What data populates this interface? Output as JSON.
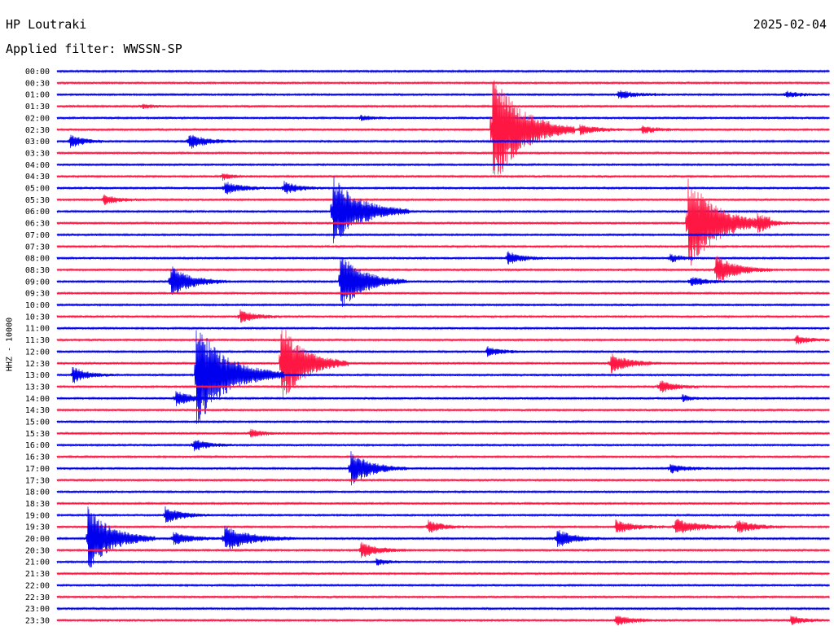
{
  "header": {
    "station": "HP Loutraki",
    "date": "2025-02-04",
    "filter_label": "Applied filter: WWSSN-SP"
  },
  "colors": {
    "even_trace": "#0000ee",
    "odd_trace": "#ff1744"
  },
  "chart_data": {
    "type": "helicorder",
    "ylabel": "HHZ - 10000",
    "row_labels": [
      "00:00",
      "00:30",
      "01:00",
      "01:30",
      "02:00",
      "02:30",
      "03:00",
      "03:30",
      "04:00",
      "04:30",
      "05:00",
      "05:30",
      "06:00",
      "06:30",
      "07:00",
      "07:30",
      "08:00",
      "08:30",
      "09:00",
      "09:30",
      "10:00",
      "10:30",
      "11:00",
      "11:30",
      "12:00",
      "12:30",
      "13:00",
      "13:30",
      "14:00",
      "14:30",
      "15:00",
      "15:30",
      "16:00",
      "16:30",
      "17:00",
      "17:30",
      "18:00",
      "18:30",
      "19:00",
      "19:30",
      "20:00",
      "20:30",
      "21:00",
      "21:30",
      "22:00",
      "22:30",
      "23:00",
      "23:30"
    ],
    "minutes_per_row": 30,
    "events": [
      {
        "row": 2,
        "minute": 21.8,
        "amp": 5,
        "dur": 2.0
      },
      {
        "row": 2,
        "minute": 28.3,
        "amp": 4,
        "dur": 1.6
      },
      {
        "row": 3,
        "minute": 3.3,
        "amp": 3,
        "dur": 1.0
      },
      {
        "row": 4,
        "minute": 11.8,
        "amp": 3,
        "dur": 1.2
      },
      {
        "row": 5,
        "minute": 16.9,
        "amp": 75,
        "dur": 3.2
      },
      {
        "row": 5,
        "minute": 20.3,
        "amp": 6,
        "dur": 2.0
      },
      {
        "row": 5,
        "minute": 22.7,
        "amp": 5,
        "dur": 1.6
      },
      {
        "row": 6,
        "minute": 0.5,
        "amp": 8,
        "dur": 1.5
      },
      {
        "row": 6,
        "minute": 5.1,
        "amp": 10,
        "dur": 1.8
      },
      {
        "row": 9,
        "minute": 6.4,
        "amp": 4,
        "dur": 1.2
      },
      {
        "row": 10,
        "minute": 6.5,
        "amp": 8,
        "dur": 1.8
      },
      {
        "row": 10,
        "minute": 8.8,
        "amp": 8,
        "dur": 1.6
      },
      {
        "row": 11,
        "minute": 1.8,
        "amp": 6,
        "dur": 1.6
      },
      {
        "row": 12,
        "minute": 10.7,
        "amp": 45,
        "dur": 3.0
      },
      {
        "row": 13,
        "minute": 24.5,
        "amp": 60,
        "dur": 3.2
      },
      {
        "row": 13,
        "minute": 27.2,
        "amp": 8,
        "dur": 1.6
      },
      {
        "row": 16,
        "minute": 17.5,
        "amp": 8,
        "dur": 1.6
      },
      {
        "row": 16,
        "minute": 23.8,
        "amp": 5,
        "dur": 1.4
      },
      {
        "row": 17,
        "minute": 25.6,
        "amp": 18,
        "dur": 2.2
      },
      {
        "row": 18,
        "minute": 4.4,
        "amp": 20,
        "dur": 2.2
      },
      {
        "row": 18,
        "minute": 11.0,
        "amp": 36,
        "dur": 2.6
      },
      {
        "row": 18,
        "minute": 24.6,
        "amp": 6,
        "dur": 1.6
      },
      {
        "row": 21,
        "minute": 7.1,
        "amp": 8,
        "dur": 1.6
      },
      {
        "row": 23,
        "minute": 28.7,
        "amp": 5,
        "dur": 1.6
      },
      {
        "row": 24,
        "minute": 16.7,
        "amp": 6,
        "dur": 1.6
      },
      {
        "row": 25,
        "minute": 8.7,
        "amp": 50,
        "dur": 2.6
      },
      {
        "row": 25,
        "minute": 21.5,
        "amp": 12,
        "dur": 2.0
      },
      {
        "row": 26,
        "minute": 0.6,
        "amp": 10,
        "dur": 1.6
      },
      {
        "row": 26,
        "minute": 5.4,
        "amp": 65,
        "dur": 3.4
      },
      {
        "row": 27,
        "minute": 23.4,
        "amp": 8,
        "dur": 1.6
      },
      {
        "row": 28,
        "minute": 4.6,
        "amp": 10,
        "dur": 1.6
      },
      {
        "row": 28,
        "minute": 24.3,
        "amp": 4,
        "dur": 1.0
      },
      {
        "row": 31,
        "minute": 7.5,
        "amp": 5,
        "dur": 1.4
      },
      {
        "row": 32,
        "minute": 5.3,
        "amp": 7,
        "dur": 1.6
      },
      {
        "row": 34,
        "minute": 11.4,
        "amp": 22,
        "dur": 2.2
      },
      {
        "row": 34,
        "minute": 23.8,
        "amp": 6,
        "dur": 1.6
      },
      {
        "row": 38,
        "minute": 4.2,
        "amp": 10,
        "dur": 1.8
      },
      {
        "row": 39,
        "minute": 14.4,
        "amp": 8,
        "dur": 1.6
      },
      {
        "row": 39,
        "minute": 21.7,
        "amp": 8,
        "dur": 2.0
      },
      {
        "row": 39,
        "minute": 24.0,
        "amp": 10,
        "dur": 2.4
      },
      {
        "row": 39,
        "minute": 26.4,
        "amp": 8,
        "dur": 2.0
      },
      {
        "row": 40,
        "minute": 1.2,
        "amp": 40,
        "dur": 2.6
      },
      {
        "row": 40,
        "minute": 4.5,
        "amp": 8,
        "dur": 2.0
      },
      {
        "row": 40,
        "minute": 6.5,
        "amp": 16,
        "dur": 2.8
      },
      {
        "row": 40,
        "minute": 19.4,
        "amp": 12,
        "dur": 1.8
      },
      {
        "row": 41,
        "minute": 11.8,
        "amp": 10,
        "dur": 1.8
      },
      {
        "row": 42,
        "minute": 12.4,
        "amp": 4,
        "dur": 1.2
      },
      {
        "row": 47,
        "minute": 21.7,
        "amp": 6,
        "dur": 1.8
      },
      {
        "row": 47,
        "minute": 28.5,
        "amp": 5,
        "dur": 1.6
      }
    ]
  }
}
